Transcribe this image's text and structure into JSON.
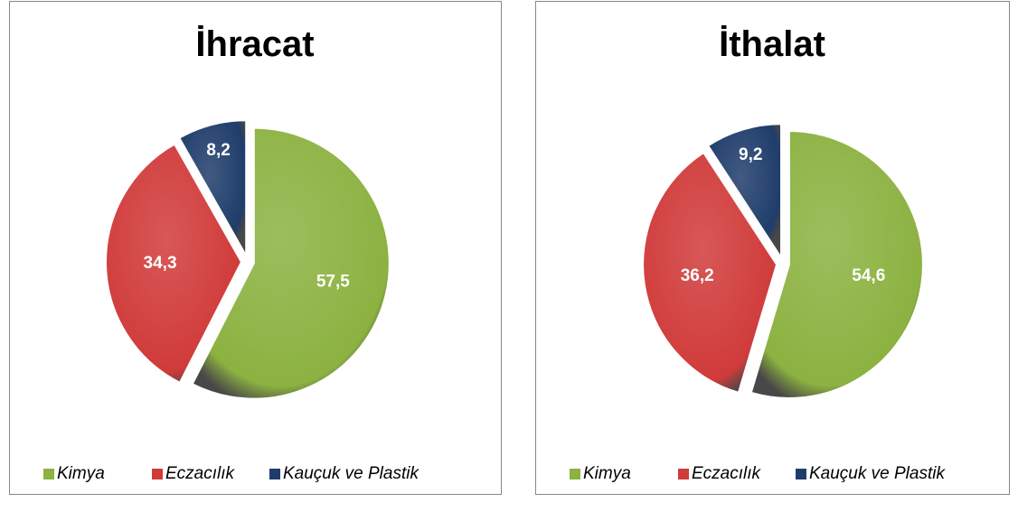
{
  "chart_data": [
    {
      "type": "pie",
      "title": "İhracat",
      "categories": [
        "Kimya",
        "Eczacılık",
        "Kauçuk ve Plastik"
      ],
      "values": [
        57.5,
        34.3,
        8.2
      ],
      "value_labels": [
        "57,5",
        "34,3",
        "8,2"
      ],
      "colors": [
        "#8cb241",
        "#d03b3a",
        "#1f3d6b"
      ]
    },
    {
      "type": "pie",
      "title": "İthalat",
      "categories": [
        "Kimya",
        "Eczacılık",
        "Kauçuk ve Plastik"
      ],
      "values": [
        54.6,
        36.2,
        9.2
      ],
      "value_labels": [
        "54,6",
        "36,2",
        "9,2"
      ],
      "colors": [
        "#8cb241",
        "#d03b3a",
        "#1f3d6b"
      ]
    }
  ]
}
